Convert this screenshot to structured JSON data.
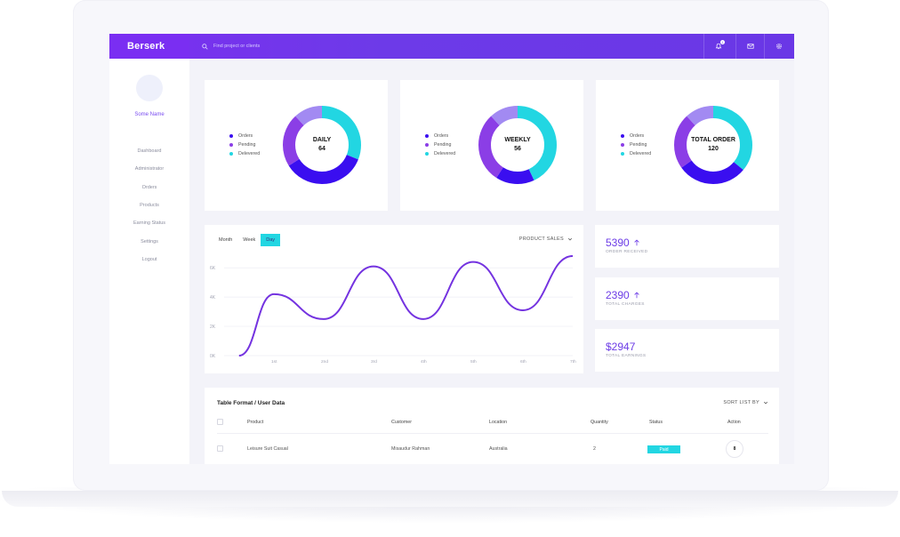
{
  "colors": {
    "accent": "#6a37e6",
    "orders": "#3a0ef0",
    "pending": "#8b3ee6",
    "delivered": "#22d6e2",
    "donut_light": "#a28af2"
  },
  "topbar": {
    "brand": "Berserk",
    "search_placeholder": "Find project or clients",
    "notification_count": "1",
    "icons": [
      "bell-icon",
      "mail-icon",
      "gear-icon"
    ]
  },
  "sidebar": {
    "username": "Some Name",
    "items": [
      "Dashboard",
      "Administrator",
      "Orders",
      "Products",
      "Earning Status",
      "Settings",
      "Logout"
    ]
  },
  "legend": {
    "orders": "Orders",
    "pending": "Pending",
    "delivered": "Delevered"
  },
  "donuts": [
    {
      "label": "DAILY",
      "value": "64",
      "segments": {
        "delivered": 0.31,
        "orders": 0.35,
        "pending": 0.22,
        "light": 0.12
      }
    },
    {
      "label": "WEEKLY",
      "value": "56",
      "segments": {
        "delivered": 0.43,
        "orders": 0.16,
        "pending": 0.29,
        "light": 0.12
      }
    },
    {
      "label": "TOTAL ORDER",
      "value": "120",
      "segments": {
        "delivered": 0.36,
        "orders": 0.29,
        "pending": 0.23,
        "light": 0.12
      }
    }
  ],
  "sales_chart": {
    "tabs": [
      "Month",
      "Week",
      "Day"
    ],
    "active_tab": "Day",
    "dropdown": "PRODUCT SALES"
  },
  "chart_data": {
    "type": "line",
    "y_ticks": [
      "0K",
      "2K",
      "4K",
      "6K"
    ],
    "x_ticks": [
      "1st",
      "2nd",
      "3rd",
      "4th",
      "5th",
      "6th",
      "7th"
    ],
    "ylim": [
      0,
      6.5
    ],
    "series": [
      {
        "values_x": [
          0.3,
          1.0,
          2.0,
          3.0,
          4.0,
          5.0,
          6.0,
          7.0
        ],
        "values_y": [
          0.0,
          4.2,
          2.5,
          6.1,
          2.5,
          6.4,
          3.1,
          6.8
        ]
      }
    ]
  },
  "stats": [
    {
      "value": "5390",
      "label": "ORDER RECEIVED",
      "trend": "up"
    },
    {
      "value": "2390",
      "label": "TOTAL CHARGES",
      "trend": "up"
    },
    {
      "value": "$2947",
      "label": "TOTAL EARNINGS",
      "trend": ""
    }
  ],
  "table": {
    "title": "Table Format / User Data",
    "sort_label": "SORT LIST BY",
    "columns": [
      "Product",
      "Customer",
      "Location",
      "Quantity",
      "Status",
      "Action"
    ],
    "rows": [
      {
        "product": "Leisure Suit Casual",
        "customer": "Misaudur Rahman",
        "location": "Australia",
        "quantity": "2",
        "status": "Paid",
        "action": "8"
      }
    ]
  }
}
